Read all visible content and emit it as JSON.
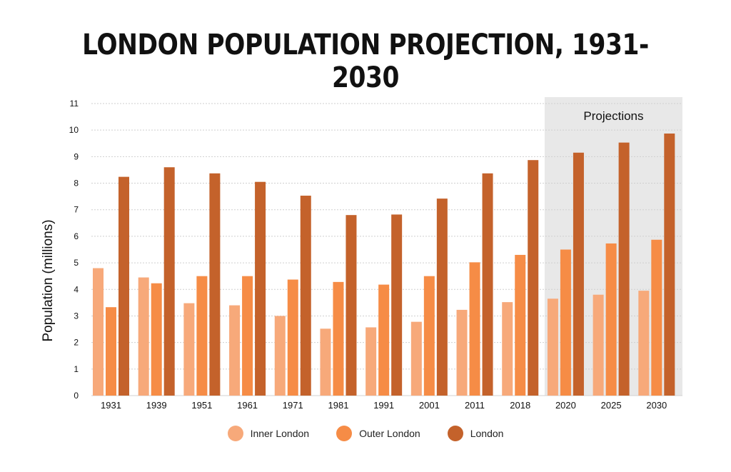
{
  "chart_data": {
    "type": "bar",
    "title": "LONDON POPULATION PROJECTION, 1931-2030",
    "ylabel": "Population (millions)",
    "xlabel": "",
    "ylim": [
      0,
      11
    ],
    "yticks": [
      0,
      1,
      2,
      3,
      4,
      5,
      6,
      7,
      8,
      9,
      10,
      11
    ],
    "grid": true,
    "legend_position": "bottom",
    "categories": [
      "1931",
      "1939",
      "1951",
      "1961",
      "1971",
      "1981",
      "1991",
      "2001",
      "2011",
      "2018",
      "2020",
      "2025",
      "2030"
    ],
    "series": [
      {
        "name": "Inner London",
        "color": "#f7a97a",
        "values": [
          4.8,
          4.45,
          3.48,
          3.4,
          3.0,
          2.52,
          2.57,
          2.78,
          3.23,
          3.52,
          3.65,
          3.8,
          3.95
        ]
      },
      {
        "name": "Outer London",
        "color": "#f68c46",
        "values": [
          3.33,
          4.23,
          4.5,
          4.5,
          4.37,
          4.28,
          4.18,
          4.5,
          5.02,
          5.3,
          5.5,
          5.73,
          5.87
        ]
      },
      {
        "name": "London",
        "color": "#c4622b",
        "values": [
          8.24,
          8.6,
          8.37,
          8.05,
          7.53,
          6.8,
          6.82,
          7.42,
          8.37,
          8.87,
          9.15,
          9.53,
          9.87
        ]
      }
    ],
    "projection_region": {
      "label": "Projections",
      "categories": [
        "2020",
        "2025",
        "2030"
      ],
      "color": "#e8e8e8"
    }
  }
}
